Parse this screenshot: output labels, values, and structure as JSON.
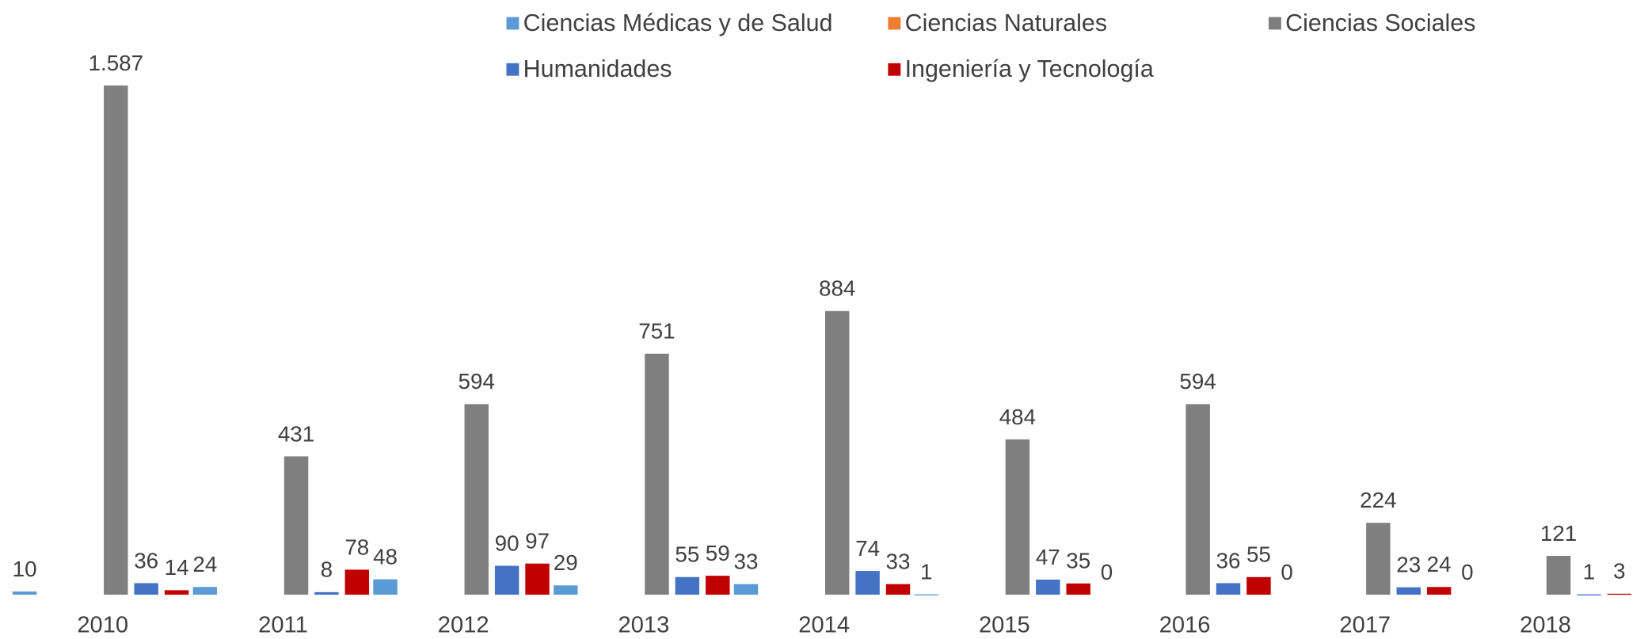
{
  "chart_data": {
    "type": "bar",
    "categories": [
      "2010",
      "2011",
      "2012",
      "2013",
      "2014",
      "2015",
      "2016",
      "2017",
      "2018"
    ],
    "series": [
      {
        "name": "Ciencias Médicas y de Salud",
        "color": "#5b9bd5",
        "values": [
          10,
          24,
          48,
          29,
          33,
          1,
          0,
          0,
          0
        ]
      },
      {
        "name": "Ciencias Naturales",
        "color": "#ed7d31",
        "values": [
          null,
          null,
          null,
          null,
          null,
          null,
          null,
          null,
          null
        ]
      },
      {
        "name": "Ciencias Sociales",
        "color": "#7f7f7f",
        "values": [
          1587,
          431,
          594,
          751,
          884,
          484,
          594,
          224,
          121
        ],
        "value_labels": [
          "1.587",
          "431",
          "594",
          "751",
          "884",
          "484",
          "594",
          "224",
          "121"
        ]
      },
      {
        "name": "Humanidades",
        "color": "#4472c4",
        "values": [
          36,
          8,
          90,
          55,
          74,
          47,
          36,
          23,
          1
        ]
      },
      {
        "name": "Ingeniería y Tecnología",
        "color": "#c00000",
        "values": [
          14,
          78,
          97,
          59,
          33,
          35,
          55,
          24,
          3
        ]
      }
    ],
    "ylim": [
      0,
      1650
    ]
  }
}
